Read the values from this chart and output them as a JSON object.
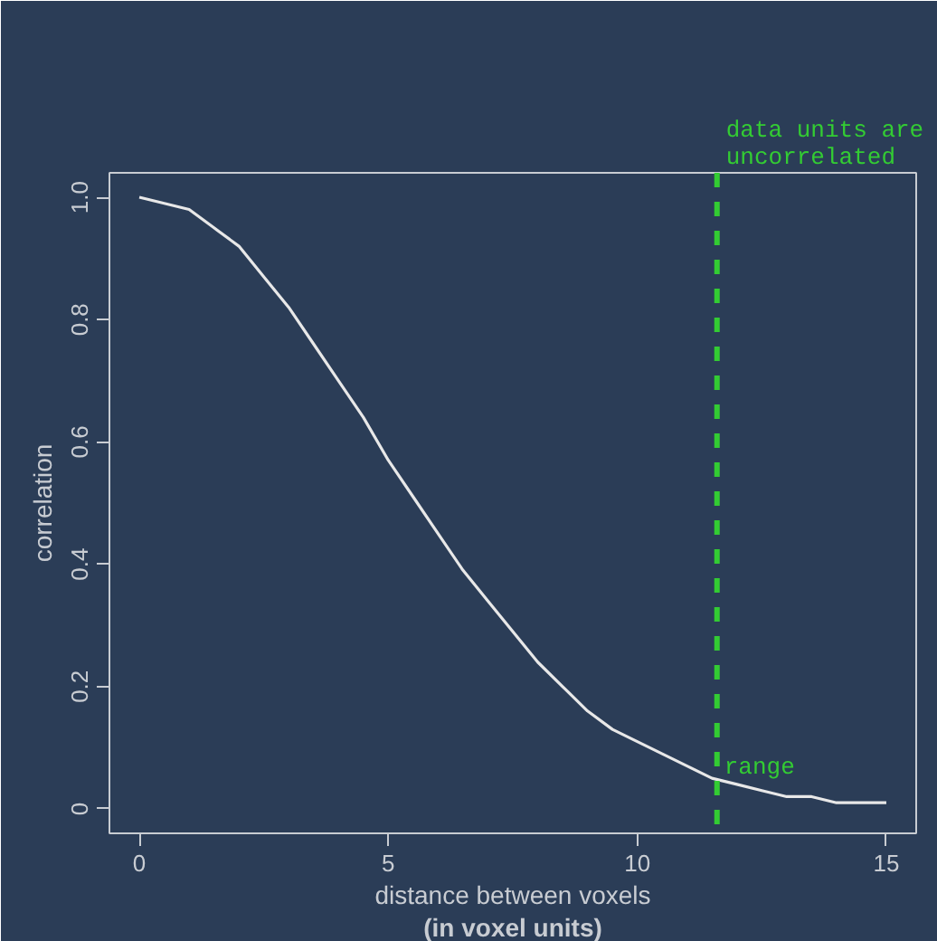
{
  "chart_data": {
    "type": "line",
    "xlabel": "distance between voxels\n(in voxel units)",
    "ylabel": "correlation",
    "x": [
      0,
      0.5,
      1,
      1.5,
      2,
      2.5,
      3,
      3.5,
      4,
      4.5,
      5,
      5.5,
      6,
      6.5,
      7,
      7.5,
      8,
      8.5,
      9,
      9.5,
      10,
      10.5,
      11,
      11.5,
      12,
      12.5,
      13,
      13.5,
      14,
      14.5,
      15
    ],
    "series": [
      {
        "color": "#e8e8e8",
        "values": [
          1.0,
          0.99,
          0.98,
          0.95,
          0.92,
          0.87,
          0.82,
          0.76,
          0.7,
          0.64,
          0.57,
          0.51,
          0.45,
          0.39,
          0.34,
          0.29,
          0.24,
          0.2,
          0.16,
          0.13,
          0.11,
          0.09,
          0.07,
          0.05,
          0.04,
          0.03,
          0.02,
          0.02,
          0.01,
          0.01,
          0.01
        ]
      }
    ],
    "xlim": [
      -0.6,
      15.6
    ],
    "ylim": [
      -0.04,
      1.04
    ],
    "xticks": [
      0,
      5,
      10,
      15
    ],
    "yticks": [
      0,
      0.2,
      0.4,
      0.6,
      0.8,
      {
        "value": 1.0,
        "label": "1.0"
      }
    ],
    "ref_lines": [
      {
        "axis": "x",
        "value": 11.6,
        "label": "range",
        "color": "#33cc33",
        "line_style": "dashed"
      }
    ],
    "annotations": [
      "data units are\nuncorrelated"
    ],
    "grid": false,
    "marker": "none",
    "line_style": "solid"
  }
}
